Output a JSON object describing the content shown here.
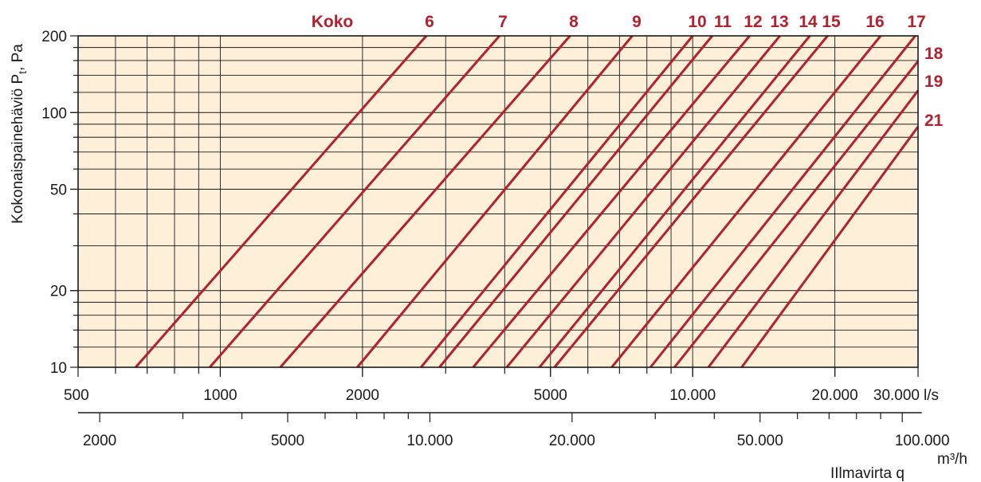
{
  "chart_data": {
    "type": "line",
    "x_scale": "log",
    "y_scale": "log",
    "xlim": [
      500,
      30000
    ],
    "ylim": [
      10,
      200
    ],
    "x_unit": "l/s",
    "y_tick_labels": [
      "10",
      "20",
      "50",
      "100",
      "200"
    ],
    "y_ticks": [
      10,
      20,
      50,
      100,
      200
    ],
    "x_tick_labels_ls": [
      "500",
      "1000",
      "2000",
      "5000",
      "10.000",
      "20.000",
      "30.000"
    ],
    "x_ticks_ls": [
      500,
      1000,
      2000,
      5000,
      10000,
      20000,
      30000
    ],
    "secondary_x_unit": "m³/h",
    "secondary_x_tick_labels": [
      "2000",
      "5000",
      "10.000",
      "20.000",
      "50.000",
      "100.000"
    ],
    "secondary_x_ticks_m3h": [
      2000,
      5000,
      10000,
      20000,
      50000,
      100000
    ],
    "ylabel_main": "Kokonaispainehäviö P",
    "ylabel_sub": "t",
    "ylabel_tail": ", Pa",
    "xlabel_prefix": "I",
    "xlabel": "Ilmavirta q",
    "legend_title": "Koko",
    "series": [
      {
        "name": "6",
        "points": [
          [
            662,
            10
          ],
          [
            2730,
            200
          ]
        ]
      },
      {
        "name": "7",
        "points": [
          [
            950,
            10
          ],
          [
            3900,
            200
          ]
        ]
      },
      {
        "name": "8",
        "points": [
          [
            1340,
            10
          ],
          [
            5500,
            200
          ]
        ]
      },
      {
        "name": "9",
        "points": [
          [
            1950,
            10
          ],
          [
            7450,
            200
          ]
        ]
      },
      {
        "name": "10",
        "points": [
          [
            2660,
            10
          ],
          [
            10000,
            200
          ]
        ]
      },
      {
        "name": "11",
        "points": [
          [
            2910,
            10
          ],
          [
            11000,
            200
          ]
        ]
      },
      {
        "name": "12",
        "points": [
          [
            3430,
            10
          ],
          [
            13200,
            200
          ]
        ]
      },
      {
        "name": "13",
        "points": [
          [
            4040,
            10
          ],
          [
            15300,
            200
          ]
        ]
      },
      {
        "name": "14",
        "points": [
          [
            4740,
            10
          ],
          [
            17700,
            200
          ]
        ]
      },
      {
        "name": "15",
        "points": [
          [
            5100,
            10
          ],
          [
            19300,
            200
          ]
        ]
      },
      {
        "name": "16",
        "points": [
          [
            6740,
            10
          ],
          [
            25000,
            200
          ]
        ]
      },
      {
        "name": "17",
        "points": [
          [
            8140,
            10
          ],
          [
            29600,
            200
          ]
        ]
      },
      {
        "name": "18",
        "points": [
          [
            9150,
            10
          ],
          [
            30000,
            159
          ]
        ]
      },
      {
        "name": "19",
        "points": [
          [
            10800,
            10
          ],
          [
            30000,
            122
          ]
        ]
      },
      {
        "name": "21",
        "points": [
          [
            12700,
            10
          ],
          [
            30000,
            88
          ]
        ]
      }
    ],
    "grid": true,
    "colors": {
      "line": "#b3202e",
      "plot_bg": "#fdefd8",
      "grid": "#1a1a1a"
    }
  }
}
